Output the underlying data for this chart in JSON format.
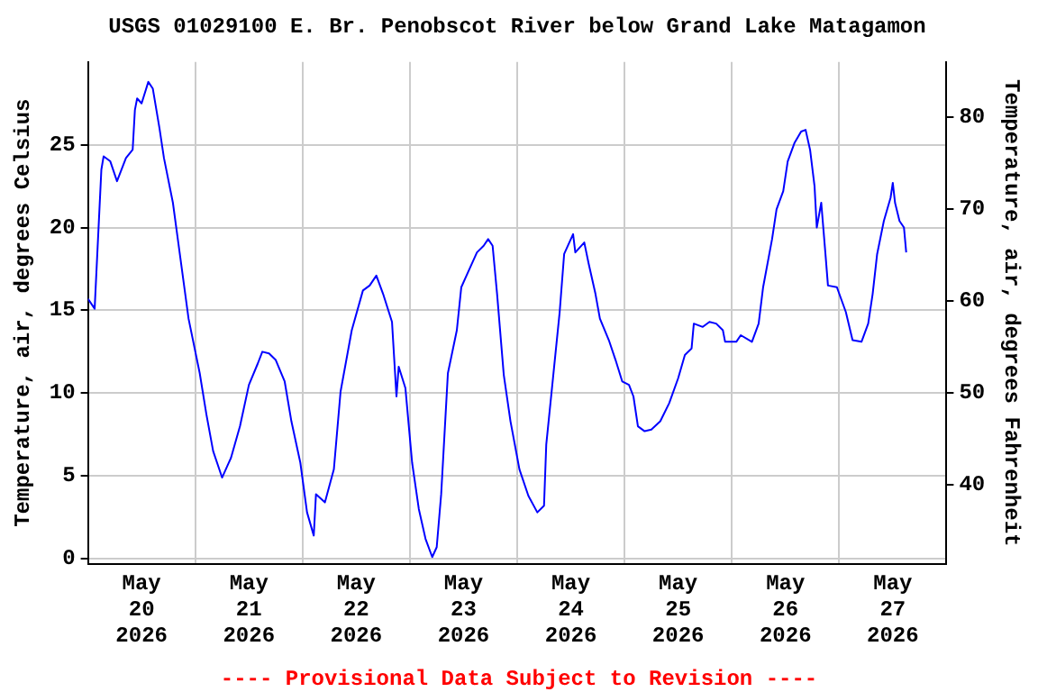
{
  "chart_data": {
    "type": "line",
    "title": "USGS 01029100 E. Br. Penobscot River below Grand Lake Matagamon",
    "ylabel": "Temperature, air, degrees Celsius",
    "y2label": "Temperature, air, degrees Fahrenheit",
    "annotations": [
      "---- Provisional Data Subject to Revision ----"
    ],
    "xlim": [
      "2026-05-20T00:00",
      "2026-05-28T00:00"
    ],
    "xticks": [
      {
        "value": "2026-05-20T12:00",
        "label": "May 20 2026"
      },
      {
        "value": "2026-05-21T00:00",
        "label": null
      },
      {
        "value": "2026-05-21T12:00",
        "label": "May 21 2026"
      },
      {
        "value": "2026-05-22T00:00",
        "label": null
      },
      {
        "value": "2026-05-22T12:00",
        "label": "May 22 2026"
      },
      {
        "value": "2026-05-23T00:00",
        "label": null
      },
      {
        "value": "2026-05-23T12:00",
        "label": "May 23 2026"
      },
      {
        "value": "2026-05-24T00:00",
        "label": null
      },
      {
        "value": "2026-05-24T12:00",
        "label": "May 24 2026"
      },
      {
        "value": "2026-05-25T00:00",
        "label": null
      },
      {
        "value": "2026-05-25T12:00",
        "label": "May 25 2026"
      },
      {
        "value": "2026-05-26T00:00",
        "label": null
      },
      {
        "value": "2026-05-26T12:00",
        "label": "May 26 2026"
      },
      {
        "value": "2026-05-27T00:00",
        "label": null
      },
      {
        "value": "2026-05-27T12:00",
        "label": "May 27 2026"
      }
    ],
    "ylim": [
      -0.3,
      30
    ],
    "yticks": [
      0,
      5,
      10,
      15,
      20,
      25
    ],
    "y2lim": [
      31.46,
      86
    ],
    "y2ticks": [
      40,
      50,
      60,
      70,
      80
    ],
    "grid": true,
    "legend": false,
    "marker": "none",
    "line_style": "solid",
    "x": [
      "2026-05-20T00:00",
      "2026-05-20T01:30",
      "2026-05-20T03:00",
      "2026-05-20T03:30",
      "2026-05-20T05:00",
      "2026-05-20T06:30",
      "2026-05-20T08:30",
      "2026-05-20T10:00",
      "2026-05-20T10:30",
      "2026-05-20T11:00",
      "2026-05-20T12:00",
      "2026-05-20T13:30",
      "2026-05-20T14:30",
      "2026-05-20T16:00",
      "2026-05-20T17:00",
      "2026-05-20T19:00",
      "2026-05-20T20:30",
      "2026-05-20T22:30",
      "2026-05-21T01:00",
      "2026-05-21T02:30",
      "2026-05-21T04:00",
      "2026-05-21T06:00",
      "2026-05-21T08:00",
      "2026-05-21T10:00",
      "2026-05-21T12:00",
      "2026-05-21T14:00",
      "2026-05-21T15:00",
      "2026-05-21T16:30",
      "2026-05-21T18:00",
      "2026-05-21T20:00",
      "2026-05-21T21:30",
      "2026-05-21T23:30",
      "2026-05-22T01:00",
      "2026-05-22T02:30",
      "2026-05-22T03:00",
      "2026-05-22T05:00",
      "2026-05-22T07:00",
      "2026-05-22T08:30",
      "2026-05-22T11:00",
      "2026-05-22T13:30",
      "2026-05-22T15:00",
      "2026-05-22T16:30",
      "2026-05-22T18:00",
      "2026-05-22T20:00",
      "2026-05-22T21:00",
      "2026-05-22T21:30",
      "2026-05-22T23:00",
      "2026-05-23T00:30",
      "2026-05-23T02:00",
      "2026-05-23T03:30",
      "2026-05-23T05:00",
      "2026-05-23T06:00",
      "2026-05-23T07:00",
      "2026-05-23T08:30",
      "2026-05-23T10:30",
      "2026-05-23T11:30",
      "2026-05-23T13:00",
      "2026-05-23T15:00",
      "2026-05-23T16:30",
      "2026-05-23T17:30",
      "2026-05-23T18:30",
      "2026-05-23T19:30",
      "2026-05-23T21:00",
      "2026-05-23T22:30",
      "2026-05-24T00:30",
      "2026-05-24T02:30",
      "2026-05-24T04:30",
      "2026-05-24T06:00",
      "2026-05-24T06:30",
      "2026-05-24T08:00",
      "2026-05-24T09:30",
      "2026-05-24T10:30",
      "2026-05-24T12:30",
      "2026-05-24T13:00",
      "2026-05-24T15:00",
      "2026-05-24T16:00",
      "2026-05-24T17:30",
      "2026-05-24T18:30",
      "2026-05-24T20:30",
      "2026-05-24T22:00",
      "2026-05-24T23:30",
      "2026-05-25T01:00",
      "2026-05-25T02:00",
      "2026-05-25T03:00",
      "2026-05-25T04:30",
      "2026-05-25T06:00",
      "2026-05-25T08:00",
      "2026-05-25T10:00",
      "2026-05-25T12:00",
      "2026-05-25T13:30",
      "2026-05-25T15:00",
      "2026-05-25T15:30",
      "2026-05-25T17:30",
      "2026-05-25T19:00",
      "2026-05-25T20:30",
      "2026-05-25T22:00",
      "2026-05-25T22:30",
      "2026-05-26T01:00",
      "2026-05-26T02:00",
      "2026-05-26T04:30",
      "2026-05-26T06:00",
      "2026-05-26T07:00",
      "2026-05-26T09:00",
      "2026-05-26T10:00",
      "2026-05-26T11:30",
      "2026-05-26T12:30",
      "2026-05-26T14:00",
      "2026-05-26T15:30",
      "2026-05-26T16:30",
      "2026-05-26T17:30",
      "2026-05-26T18:30",
      "2026-05-26T19:00",
      "2026-05-26T20:00",
      "2026-05-26T21:00",
      "2026-05-26T21:30",
      "2026-05-26T23:30",
      "2026-05-27T01:30",
      "2026-05-27T03:00",
      "2026-05-27T05:00",
      "2026-05-27T06:30",
      "2026-05-27T07:30",
      "2026-05-27T08:30",
      "2026-05-27T10:00",
      "2026-05-27T11:30",
      "2026-05-27T12:00",
      "2026-05-27T12:30",
      "2026-05-27T13:30",
      "2026-05-27T14:30",
      "2026-05-27T15:00"
    ],
    "series": [
      {
        "color": "#0000ff",
        "values": [
          15.7,
          15.1,
          23.5,
          24.3,
          24.0,
          22.8,
          24.2,
          24.7,
          27.1,
          27.8,
          27.5,
          28.8,
          28.4,
          26.0,
          24.2,
          21.5,
          18.5,
          14.5,
          11.2,
          8.7,
          6.5,
          4.9,
          6.1,
          8.0,
          10.5,
          11.8,
          12.5,
          12.4,
          12.0,
          10.7,
          8.3,
          5.8,
          2.8,
          1.4,
          3.9,
          3.4,
          5.4,
          10.1,
          13.8,
          16.2,
          16.5,
          17.1,
          16.0,
          14.3,
          9.8,
          11.6,
          10.3,
          5.8,
          3.0,
          1.2,
          0.1,
          0.7,
          3.9,
          11.2,
          13.8,
          16.4,
          17.3,
          18.5,
          18.9,
          19.3,
          18.9,
          16.0,
          11.1,
          8.3,
          5.4,
          3.8,
          2.8,
          3.2,
          6.9,
          10.9,
          14.9,
          18.4,
          19.6,
          18.5,
          19.1,
          17.8,
          16.0,
          14.5,
          13.2,
          12.0,
          10.7,
          10.5,
          9.8,
          8.0,
          7.7,
          7.8,
          8.3,
          9.4,
          10.9,
          12.3,
          12.7,
          14.2,
          14.0,
          14.3,
          14.2,
          13.8,
          13.1,
          13.1,
          13.5,
          13.1,
          14.2,
          16.4,
          19.3,
          21.1,
          22.2,
          24.0,
          25.1,
          25.8,
          25.9,
          24.7,
          22.5,
          20.0,
          21.5,
          18.2,
          16.5,
          16.4,
          14.9,
          13.2,
          13.1,
          14.2,
          16.0,
          18.4,
          20.4,
          21.8,
          22.7,
          21.5,
          20.4,
          20.0,
          18.5
        ]
      }
    ]
  }
}
